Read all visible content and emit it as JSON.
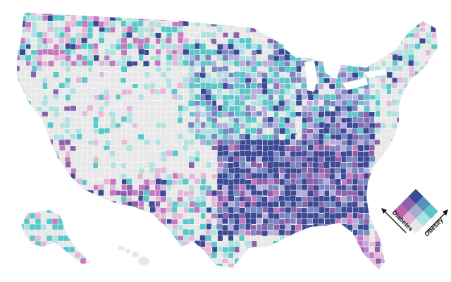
{
  "legend": {
    "x_label": "Diabetes",
    "y_label": "Obesity"
  },
  "palette": {
    "background": "#ffffff",
    "land_base": "#e6e6e6",
    "county_border": "#ffffff",
    "low_low": "#e8e8e8",
    "pink": "#e4b8d9",
    "magenta": "#c47ac0",
    "purple": "#8c62aa",
    "light_teal": "#b0e0e0",
    "teal": "#5ac8c8",
    "lavender": "#b8aedb",
    "slate": "#7b88c0",
    "navy": "#3b4a94",
    "legend_grid": [
      [
        "#3b4a94",
        "#5a8fc0",
        "#5ac8c8"
      ],
      [
        "#8c62aa",
        "#a5add3",
        "#ace4e4"
      ],
      [
        "#be64ac",
        "#dfb0d6",
        "#e8e8e8"
      ]
    ]
  }
}
